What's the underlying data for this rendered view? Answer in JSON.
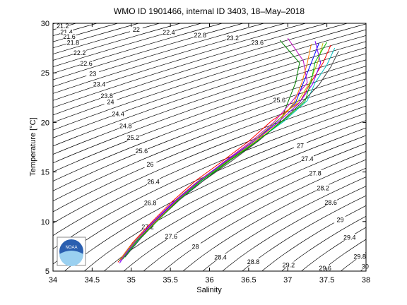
{
  "chart_data": {
    "type": "line",
    "title": "WMO ID 1901466, internal ID 3403, 18–May–2018",
    "xlabel": "Salinity",
    "ylabel": "Temperature [°C]",
    "logo_text": "NOAA",
    "xlim": [
      34,
      38
    ],
    "ylim": [
      5,
      30
    ],
    "xticks": [
      34,
      34.5,
      35,
      35.5,
      36,
      36.5,
      37,
      37.5,
      38
    ],
    "yticks": [
      5,
      10,
      15,
      20,
      25,
      30
    ],
    "contour_color": "#000000",
    "contour_levels": [
      20.8,
      21.0,
      21.2,
      21.4,
      21.6,
      21.8,
      22.0,
      22.2,
      22.4,
      22.6,
      22.8,
      23.0,
      23.2,
      23.4,
      23.6,
      23.8,
      24.0,
      24.2,
      24.4,
      24.6,
      24.8,
      25.0,
      25.2,
      25.4,
      25.6,
      25.8,
      26.0,
      26.2,
      26.4,
      26.6,
      26.8,
      27.0,
      27.2,
      27.4,
      27.6,
      27.8,
      28.0,
      28.2,
      28.4,
      28.6,
      28.8,
      29.0,
      29.2,
      29.4,
      29.6,
      29.8,
      30.0,
      30.2
    ],
    "contour_labels_left": [
      21.2,
      21.4,
      21.6,
      21.8,
      22.2,
      22.6,
      23,
      23.4,
      23.8,
      24,
      24.4,
      24.8,
      25.2,
      25.6,
      26,
      26.4,
      26.8,
      27.2,
      27.6,
      28,
      28.4,
      28.8,
      29.2,
      29.6
    ],
    "contour_labels_right": [
      22,
      22.4,
      22.8,
      23.2,
      23.6,
      25.6,
      27,
      27.4,
      27.8,
      28.2,
      28.6,
      29,
      29.4,
      29.8,
      30
    ],
    "series": [
      {
        "color": "#0000ff",
        "x": [
          34.85,
          35.05,
          35.3,
          35.55,
          35.85,
          36.2,
          36.55,
          36.85,
          37.1,
          37.2,
          37.3,
          37.4
        ],
        "values": [
          6,
          8,
          10,
          12,
          14,
          16,
          18,
          20,
          22,
          24,
          26,
          28
        ]
      },
      {
        "color": "#008000",
        "x": [
          34.88,
          35.08,
          35.32,
          35.58,
          35.9,
          36.25,
          36.6,
          36.9,
          37.0,
          37.1,
          37.15,
          36.9
        ],
        "values": [
          6.2,
          8.1,
          10,
          12.1,
          14,
          16.1,
          18,
          20,
          22,
          24,
          26,
          28.3
        ]
      },
      {
        "color": "#ff0000",
        "x": [
          34.83,
          35.02,
          35.28,
          35.52,
          35.82,
          36.15,
          36.5,
          36.8,
          37.15,
          37.3,
          37.45,
          37.55
        ],
        "values": [
          5.9,
          7.9,
          10.1,
          12,
          14.1,
          16,
          18.1,
          20.2,
          22,
          24.1,
          26,
          27.8
        ]
      },
      {
        "color": "#00bfbf",
        "x": [
          34.9,
          35.1,
          35.35,
          35.6,
          35.88,
          36.22,
          36.58,
          36.95,
          37.25,
          37.35,
          37.5,
          37.6
        ],
        "values": [
          6.3,
          8.2,
          10.2,
          12.1,
          14,
          16,
          18,
          20.1,
          22.2,
          24,
          25.8,
          27.5
        ]
      },
      {
        "color": "#bf00bf",
        "x": [
          34.86,
          35.06,
          35.31,
          35.56,
          35.86,
          36.18,
          36.52,
          36.82,
          37.05,
          37.25,
          37.2,
          37.0
        ],
        "values": [
          6.1,
          8,
          10,
          12,
          14,
          16,
          18,
          20,
          22.1,
          24,
          26.2,
          28.5
        ]
      },
      {
        "color": "#bfbf00",
        "x": [
          34.84,
          35.04,
          35.29,
          35.54,
          35.84,
          36.19,
          36.54,
          36.84,
          37.12,
          37.28,
          37.38,
          37.45
        ],
        "values": [
          6,
          8,
          10,
          12,
          14,
          16,
          18,
          20,
          22,
          24,
          26,
          28
        ]
      },
      {
        "color": "#404040",
        "x": [
          34.92,
          35.12,
          35.36,
          35.62,
          35.92,
          36.28,
          36.62,
          36.92,
          37.18,
          37.4,
          37.55,
          37.65
        ],
        "values": [
          6.4,
          8.3,
          10.3,
          12.2,
          14.1,
          16.1,
          18.1,
          20.1,
          22,
          23.8,
          25.6,
          27.2
        ]
      },
      {
        "color": "#ff8000",
        "x": [
          34.87,
          35.07,
          35.33,
          35.57,
          35.87,
          36.21,
          36.57,
          36.88,
          37.08,
          37.18,
          37.25,
          37.3
        ],
        "values": [
          6.1,
          8.1,
          10.1,
          12,
          14,
          16,
          18,
          20,
          22,
          24,
          26,
          27.9
        ]
      },
      {
        "color": "#8000ff",
        "x": [
          34.85,
          35.03,
          35.27,
          35.53,
          35.83,
          36.17,
          36.53,
          36.86,
          37.14,
          37.32,
          37.42,
          37.35
        ],
        "values": [
          5.8,
          7.8,
          9.9,
          11.9,
          13.9,
          15.9,
          17.9,
          19.9,
          21.9,
          23.9,
          26,
          28.2
        ]
      },
      {
        "color": "#00c000",
        "x": [
          34.89,
          35.09,
          35.34,
          35.59,
          35.89,
          36.24,
          36.6,
          36.93,
          37.22,
          37.3,
          37.35,
          37.5
        ],
        "values": [
          6.2,
          8.2,
          10.1,
          12.1,
          14.1,
          16.1,
          18.1,
          20.1,
          22.1,
          24.2,
          26.1,
          28.1
        ]
      }
    ]
  }
}
